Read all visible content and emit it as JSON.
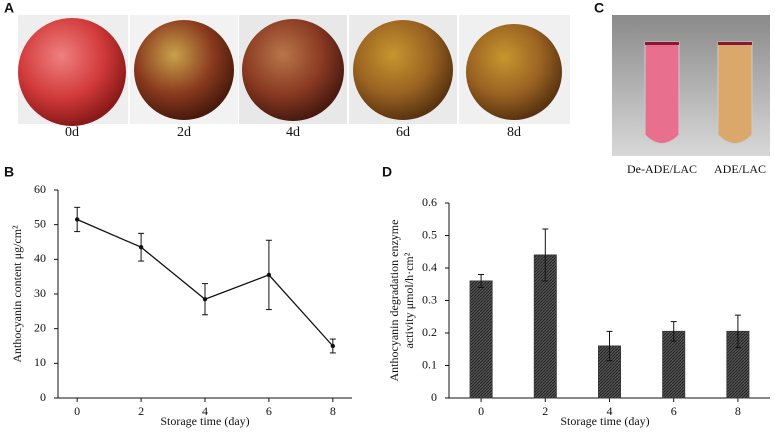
{
  "figure": {
    "panel_labels": [
      "A",
      "B",
      "C",
      "D"
    ],
    "photo_captions": [
      "0d",
      "2d",
      "4d",
      "6d",
      "8d"
    ],
    "tube_captions": [
      "De-ADE/LAC",
      "ADE/LAC"
    ]
  },
  "chart_data": [
    {
      "type": "line",
      "xlabel": "Storage time (day)",
      "ylabel": "Anthocyanin content  μg/cm²",
      "x": [
        0,
        2,
        4,
        6,
        8
      ],
      "xlim": [
        -0.6,
        8.6
      ],
      "xticks": [
        0,
        2,
        4,
        6,
        8
      ],
      "ylim": [
        0,
        60
      ],
      "yticks": [
        0,
        10,
        20,
        30,
        40,
        50,
        60
      ],
      "series": [
        {
          "color": "#111111",
          "values": [
            51.5,
            43.5,
            28.5,
            35.5,
            15
          ],
          "errors": [
            3.5,
            4,
            4.5,
            10,
            2
          ]
        }
      ]
    },
    {
      "type": "bar",
      "xlabel": "Storage time (day)",
      "ylabel": [
        "Anthocyanin degradation enzyme",
        "activity μmol/h·cm²"
      ],
      "categories": [
        "0",
        "2",
        "4",
        "6",
        "8"
      ],
      "values": [
        0.36,
        0.44,
        0.16,
        0.205,
        0.205
      ],
      "errors": [
        0.02,
        0.08,
        0.045,
        0.03,
        0.05
      ],
      "color": "#3a3a3a",
      "ylim": [
        0,
        0.6
      ],
      "yticks": [
        0,
        0.1,
        0.2,
        0.3,
        0.4,
        0.5,
        0.6
      ]
    }
  ]
}
